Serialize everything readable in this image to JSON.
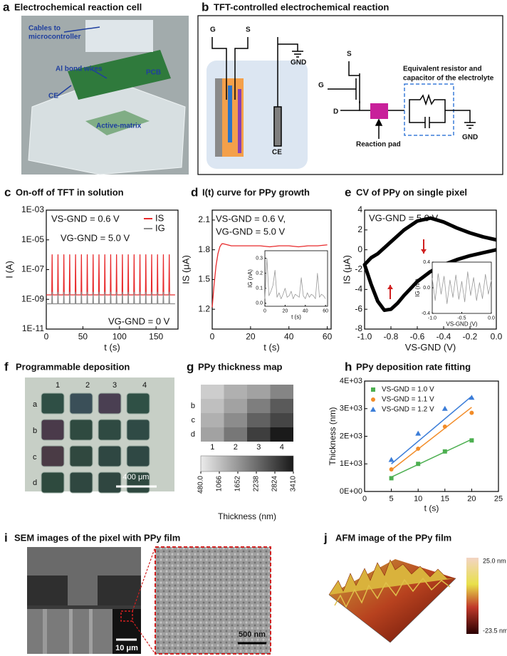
{
  "panels": {
    "a": {
      "label": "a",
      "title": "Electrochemical reaction cell",
      "annotations": [
        "Cables to",
        "microcontroller",
        "Al bond wires",
        "PCB",
        "CE",
        "Active-matrix"
      ]
    },
    "b": {
      "label": "b",
      "title": "TFT-controlled electrochemical reaction",
      "labels": [
        "G",
        "S",
        "GND",
        "CE",
        "S",
        "G",
        "D",
        "Reaction pad",
        "Equivalent resistor and",
        "capacitor of the electrolyte",
        "GND"
      ]
    },
    "f": {
      "label": "f",
      "title": "Programmable deposition",
      "columns": [
        "1",
        "2",
        "3",
        "4"
      ],
      "rows": [
        "a",
        "b",
        "c",
        "d"
      ],
      "scale_bar": "400 μm"
    },
    "i": {
      "label": "i",
      "title": "SEM images of the pixel with PPy film",
      "scale_bars": [
        "10 μm",
        "500 nm"
      ]
    },
    "j": {
      "label": "j",
      "title": "AFM image of the PPy film",
      "colorbar_labels": [
        "25.0 nm",
        "-23.5 nm"
      ]
    }
  },
  "chart_data": [
    {
      "panel": "c",
      "type": "line",
      "title": "On-off of TFT in solution",
      "xlabel": "t (s)",
      "ylabel": "I (A)",
      "log_y": true,
      "xlim": [
        0,
        180
      ],
      "xticks": [
        0,
        50,
        100,
        150
      ],
      "ylim": [
        1e-11,
        0.001
      ],
      "yticks": [
        {
          "value": 1e-11,
          "label": "1E-11"
        },
        {
          "value": 1e-09,
          "label": "1E-09"
        },
        {
          "value": 1e-07,
          "label": "1E-07"
        },
        {
          "value": 1e-05,
          "label": "1E-05"
        },
        {
          "value": 0.001,
          "label": "1E-03"
        }
      ],
      "legend": "upper right",
      "x": [
        0,
        7.5,
        8,
        8.5,
        15.5,
        16,
        16.5,
        23.5,
        24,
        24.5,
        31.5,
        32,
        32.5,
        39.5,
        40,
        40.5,
        47.5,
        48,
        48.5,
        55.5,
        56,
        56.5,
        63.5,
        64,
        64.5,
        71.5,
        72,
        72.5,
        79.5,
        80,
        80.5,
        87.5,
        88,
        88.5,
        95.5,
        96,
        96.5,
        103.5,
        104,
        104.5,
        111.5,
        112,
        112.5,
        119.5,
        120,
        120.5,
        127.5,
        128,
        128.5,
        135.5,
        136,
        136.5,
        143.5,
        144,
        144.5,
        151.5,
        152,
        152.5,
        159.5,
        160,
        160.5,
        167.5,
        168,
        168.5,
        176
      ],
      "series": [
        {
          "name": "IS",
          "color": "#e8292b",
          "values": [
            2e-09,
            2e-09,
            1e-06,
            2e-09,
            2e-09,
            1e-06,
            2e-09,
            2e-09,
            1e-06,
            2e-09,
            2e-09,
            1e-06,
            2e-09,
            2e-09,
            1e-06,
            2e-09,
            2e-09,
            1e-06,
            2e-09,
            2e-09,
            1e-06,
            2e-09,
            2e-09,
            1e-06,
            2e-09,
            2e-09,
            1e-06,
            2e-09,
            2e-09,
            1e-06,
            2e-09,
            2e-09,
            1e-06,
            2e-09,
            2e-09,
            1e-06,
            2e-09,
            2e-09,
            1e-06,
            2e-09,
            2e-09,
            1e-06,
            2e-09,
            2e-09,
            1e-06,
            2e-09,
            2e-09,
            1e-06,
            2e-09,
            2e-09,
            1e-06,
            2e-09,
            2e-09,
            1e-06,
            2e-09,
            2e-09,
            1e-06,
            2e-09,
            2e-09,
            1e-06,
            2e-09,
            2e-09,
            1e-06,
            2e-09,
            2e-09
          ]
        },
        {
          "name": "IG",
          "color": "#8c8c8c",
          "values": [
            5e-10,
            5e-10,
            3e-09,
            5e-10,
            5e-10,
            3e-09,
            5e-10,
            5e-10,
            3e-09,
            5e-10,
            5e-10,
            3e-09,
            5e-10,
            5e-10,
            3e-09,
            5e-10,
            5e-10,
            3e-09,
            5e-10,
            5e-10,
            3e-09,
            5e-10,
            5e-10,
            3e-09,
            5e-10,
            5e-10,
            3e-09,
            5e-10,
            5e-10,
            3e-09,
            5e-10,
            5e-10,
            3e-09,
            5e-10,
            5e-10,
            3e-09,
            5e-10,
            5e-10,
            3e-09,
            5e-10,
            5e-10,
            3e-09,
            5e-10,
            5e-10,
            3e-09,
            5e-10,
            5e-10,
            3e-09,
            5e-10,
            5e-10,
            3e-09,
            5e-10,
            5e-10,
            3e-09,
            5e-10,
            5e-10,
            3e-09,
            5e-10,
            5e-10,
            3e-09,
            5e-10,
            5e-10,
            3e-09,
            5e-10,
            5e-10
          ]
        }
      ],
      "annotations": [
        "VS-GND = 0.6 V",
        "VG-GND = 5.0 V",
        "VG-GND = 0 V"
      ]
    },
    {
      "panel": "d",
      "type": "line",
      "title": "I(t) curve for PPy growth",
      "xlabel": "t (s)",
      "ylabel": "IS (μA)",
      "xlim": [
        0,
        62
      ],
      "xticks": [
        0,
        20,
        40,
        60
      ],
      "ylim": [
        1.0,
        2.2
      ],
      "yticks": [
        1.2,
        1.5,
        1.8,
        2.1
      ],
      "x": [
        0,
        1,
        2,
        3,
        4,
        5,
        6,
        8,
        10,
        15,
        20,
        25,
        30,
        35,
        40,
        45,
        50,
        55,
        60
      ],
      "color": "#e8292b",
      "values": [
        1.22,
        1.45,
        1.64,
        1.76,
        1.83,
        1.86,
        1.86,
        1.85,
        1.84,
        1.84,
        1.84,
        1.84,
        1.83,
        1.84,
        1.84,
        1.83,
        1.84,
        1.84,
        1.85
      ],
      "annotations": [
        "VS-GND = 0.6 V,",
        "VG-GND = 5.0 V"
      ]
    },
    {
      "type": "line",
      "xlabel": "t (s)",
      "ylabel": "IG (nA)",
      "xlim": [
        0,
        62
      ],
      "xticks": [
        0,
        20,
        40,
        60
      ],
      "ylim": [
        -0.02,
        0.35
      ],
      "yticks": [
        {
          "value": 0,
          "label": "0.0"
        },
        0.1,
        0.2,
        0.3
      ],
      "x": [
        0,
        2,
        4,
        6,
        8,
        10,
        12,
        14,
        16,
        18,
        20,
        22,
        24,
        26,
        28,
        30,
        32,
        34,
        36,
        38,
        40,
        42,
        44,
        46,
        48,
        50,
        52,
        54,
        56,
        58,
        60
      ],
      "color": "#999999",
      "values": [
        0.03,
        0.3,
        0.05,
        0.08,
        0.12,
        0.22,
        0.04,
        0.07,
        0.03,
        0.06,
        0.1,
        0.04,
        0.05,
        0.08,
        0.03,
        0.06,
        0.05,
        0.04,
        0.17,
        0.05,
        0.03,
        0.07,
        0.04,
        0.06,
        0.05,
        0.03,
        0.2,
        0.04,
        0.06,
        0.05,
        0.03
      ]
    },
    {
      "panel": "e",
      "type": "line",
      "title": "CV of PPy on single pixel",
      "xlabel": "VS-GND (V)",
      "ylabel": "IS (μA)",
      "xlim": [
        -1,
        0
      ],
      "xticks": [
        {
          "value": -1,
          "label": "-1.0"
        },
        {
          "value": -0.8,
          "label": "-0.8"
        },
        {
          "value": -0.6,
          "label": "-0.6"
        },
        {
          "value": -0.4,
          "label": "-0.4"
        },
        {
          "value": -0.2,
          "label": "-0.2"
        },
        {
          "value": 0,
          "label": "0.0"
        }
      ],
      "ylim": [
        -8,
        4
      ],
      "yticks": [
        -8,
        -6,
        -4,
        -2,
        0,
        2,
        4
      ],
      "x": [
        0,
        -0.1,
        -0.2,
        -0.3,
        -0.4,
        -0.5,
        -0.6,
        -0.7,
        -0.75,
        -0.8,
        -0.85,
        -0.9,
        -0.95,
        -1,
        -0.95,
        -0.9,
        -0.8,
        -0.7,
        -0.6,
        -0.5,
        -0.4,
        -0.3,
        -0.2,
        -0.1,
        0
      ],
      "color": "#000000",
      "values": [
        0,
        -0.3,
        -0.6,
        -1,
        -1.5,
        -2.2,
        -3.2,
        -4.6,
        -5.4,
        -6,
        -6.1,
        -5.2,
        -3.5,
        -1.5,
        -0.8,
        -0.4,
        0.8,
        2,
        2.9,
        3.2,
        2.8,
        2.2,
        1.7,
        1.3,
        1
      ],
      "annotations": [
        "VG-GND = 5.0 V"
      ]
    },
    {
      "type": "line",
      "xlabel": "VS-GND (V)",
      "ylabel": "IG (nA)",
      "xlim": [
        -1,
        0
      ],
      "xticks": [
        {
          "value": -1,
          "label": "-1.0"
        },
        {
          "value": -0.5,
          "label": "-0.5"
        },
        {
          "value": 0,
          "label": "0.0"
        }
      ],
      "ylim": [
        -0.4,
        0.4
      ],
      "yticks": [
        {
          "value": -0.4,
          "label": "-0.4"
        },
        {
          "value": 0,
          "label": "0.0"
        },
        {
          "value": 0.4,
          "label": "0.4"
        }
      ],
      "x": [
        -1,
        -0.95,
        -0.9,
        -0.85,
        -0.8,
        -0.75,
        -0.7,
        -0.65,
        -0.6,
        -0.55,
        -0.5,
        -0.45,
        -0.4,
        -0.35,
        -0.3,
        -0.25,
        -0.2,
        -0.15,
        -0.1,
        -0.05,
        0
      ],
      "color": "#999999",
      "values": [
        0.15,
        -0.2,
        0.22,
        -0.1,
        0.18,
        -0.25,
        0.12,
        -0.15,
        0.2,
        -0.18,
        0.1,
        -0.22,
        0.25,
        -0.12,
        0.16,
        -0.2,
        0.08,
        -0.17,
        0.21,
        -0.1,
        0.12
      ]
    },
    {
      "panel": "g",
      "type": "heatmap",
      "title": "PPy thickness map",
      "categories": [
        "1",
        "2",
        "3",
        "4"
      ],
      "rows": [
        null,
        "b",
        "c",
        "d"
      ],
      "values": [
        [
          900,
          1300,
          1500,
          1900
        ],
        [
          1100,
          1500,
          2000,
          2500
        ],
        [
          1300,
          1800,
          2400,
          2800
        ],
        [
          1500,
          2100,
          2900,
          3400
        ]
      ],
      "zlim": [
        480,
        3410
      ],
      "zticks": [
        {
          "value": 480,
          "label": "480.0"
        },
        1066,
        1652,
        2238,
        2824,
        3410
      ],
      "zlabel": "Thickness (nm)"
    },
    {
      "panel": "h",
      "type": "scatter",
      "title": "PPy deposition rate fitting",
      "xlabel": "t (s)",
      "ylabel": "Thickness (nm)",
      "xlim": [
        0,
        25
      ],
      "xticks": [
        0,
        5,
        10,
        15,
        20,
        25
      ],
      "ylim": [
        0,
        4000
      ],
      "yticks": [
        {
          "value": 0,
          "label": "0E+00"
        },
        {
          "value": 1000,
          "label": "1E+03"
        },
        {
          "value": 2000,
          "label": "2E+03"
        },
        {
          "value": 3000,
          "label": "3E+03"
        },
        {
          "value": 4000,
          "label": "4E+03"
        }
      ],
      "legend": "upper left",
      "x": [
        5,
        10,
        15,
        20
      ],
      "fit_x": [
        5,
        20
      ],
      "series": [
        {
          "name": "VS-GND = 1.0 V",
          "color": "#4caf50",
          "marker": "square",
          "values": [
            480,
            1000,
            1450,
            1850
          ],
          "fit": [
            520,
            1890
          ]
        },
        {
          "name": "VS-GND = 1.1 V",
          "color": "#f28c28",
          "marker": "circle",
          "values": [
            800,
            1550,
            2350,
            2850
          ],
          "fit": [
            780,
            3050
          ]
        },
        {
          "name": "VS-GND = 1.2 V",
          "color": "#3b7dd8",
          "marker": "triangle",
          "values": [
            1150,
            2100,
            3000,
            3400
          ],
          "fit": [
            1000,
            3450
          ]
        }
      ]
    }
  ]
}
